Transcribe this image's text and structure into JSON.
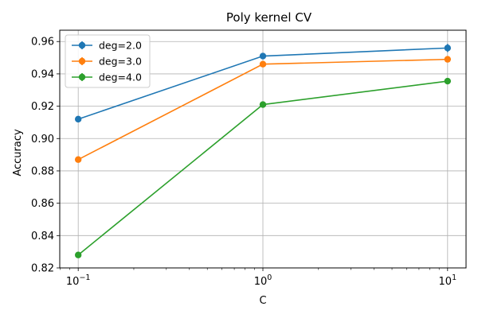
{
  "chart_data": {
    "type": "line",
    "title": "Poly kernel CV",
    "xlabel": "C",
    "ylabel": "Accuracy",
    "xscale": "log",
    "x": [
      0.1,
      1,
      10
    ],
    "xtick_labels": [
      {
        "base": "10",
        "exp": "−1"
      },
      {
        "base": "10",
        "exp": "0"
      },
      {
        "base": "10",
        "exp": "1"
      }
    ],
    "ylim": [
      0.82,
      0.967
    ],
    "yticks": [
      0.82,
      0.84,
      0.86,
      0.88,
      0.9,
      0.92,
      0.94,
      0.96
    ],
    "ytick_labels": [
      "0.82",
      "0.84",
      "0.86",
      "0.88",
      "0.90",
      "0.92",
      "0.94",
      "0.96"
    ],
    "grid": true,
    "legend_position": "top-left",
    "series": [
      {
        "name": "deg=2.0",
        "color": "#1f77b4",
        "values": [
          0.912,
          0.951,
          0.956
        ],
        "errors": [
          0.001,
          0.001,
          0.0025
        ]
      },
      {
        "name": "deg=3.0",
        "color": "#ff7f0e",
        "values": [
          0.887,
          0.946,
          0.949
        ],
        "errors": [
          0.001,
          0.001,
          0.001
        ]
      },
      {
        "name": "deg=4.0",
        "color": "#2ca02c",
        "values": [
          0.828,
          0.921,
          0.9355
        ],
        "errors": [
          0.001,
          0.001,
          0.001
        ]
      }
    ]
  }
}
